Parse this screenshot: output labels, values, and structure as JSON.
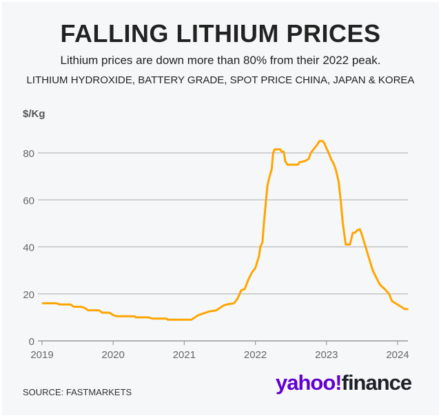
{
  "header": {
    "title": "FALLING LITHIUM PRICES",
    "subtitle": "Lithium prices are down more than 80% from their 2022 peak.",
    "series_description": "LITHIUM HYDROXIDE, BATTERY GRADE, SPOT PRICE CHINA, JAPAN & KOREA"
  },
  "footer": {
    "source": "SOURCE: FASTMARKETS",
    "logo": "yahoo!finance",
    "logo_parts": [
      "yahoo!",
      "finance"
    ]
  },
  "chart_data": {
    "type": "line",
    "title": "FALLING LITHIUM PRICES",
    "ylabel": "$/Kg",
    "xlabel": "",
    "xlim": [
      2019,
      2024.15
    ],
    "ylim": [
      0,
      90
    ],
    "x_ticks": [
      "2019",
      "2020",
      "2021",
      "2022",
      "2023",
      "2024"
    ],
    "y_ticks": [
      "0",
      "20",
      "40",
      "60",
      "80"
    ],
    "grid": "horizontal",
    "line_color": "#ffa500",
    "series": [
      {
        "x": [
          2019.0,
          2019.2,
          2019.25,
          2019.4,
          2019.45,
          2019.55,
          2019.6,
          2019.65,
          2019.8,
          2019.85,
          2019.95,
          2020.0,
          2020.05,
          2020.3,
          2020.32,
          2020.5,
          2020.55,
          2020.75,
          2020.77,
          2021.1,
          2021.15,
          2021.2,
          2021.3,
          2021.35,
          2021.45,
          2021.5,
          2021.55,
          2021.6,
          2021.7,
          2021.75,
          2021.8,
          2021.85,
          2021.9,
          2021.95,
          2022.0,
          2022.02,
          2022.05,
          2022.07,
          2022.1,
          2022.12,
          2022.15,
          2022.17,
          2022.2,
          2022.23,
          2022.25,
          2022.27,
          2022.35,
          2022.37,
          2022.4,
          2022.42,
          2022.45,
          2022.6,
          2022.62,
          2022.7,
          2022.75,
          2022.78,
          2022.83,
          2022.87,
          2022.9,
          2022.95,
          2022.97,
          2023.0,
          2023.03,
          2023.07,
          2023.1,
          2023.13,
          2023.17,
          2023.2,
          2023.23,
          2023.27,
          2023.33,
          2023.37,
          2023.4,
          2023.43,
          2023.47,
          2023.5,
          2023.55,
          2023.6,
          2023.65,
          2023.7,
          2023.75,
          2023.82,
          2023.88,
          2023.92,
          2023.97,
          2024.05,
          2024.1,
          2024.15
        ],
        "y": [
          16,
          16,
          15.5,
          15.5,
          14.5,
          14.5,
          14,
          13,
          13,
          12,
          12,
          11,
          10.5,
          10.5,
          10,
          10,
          9.5,
          9.5,
          9,
          9,
          10,
          11,
          12,
          12.5,
          13,
          14,
          15,
          15.5,
          16,
          18,
          21.5,
          22,
          26,
          29,
          31,
          33,
          36,
          40,
          42,
          50,
          60,
          66,
          70,
          73,
          80,
          81.5,
          81.5,
          80.5,
          80.5,
          76.5,
          75,
          75,
          76,
          76.5,
          77.5,
          80,
          82,
          83.5,
          85,
          85,
          84,
          82,
          80,
          77,
          75.5,
          73,
          68,
          60,
          50,
          41,
          41,
          46,
          46,
          47,
          47.5,
          45,
          40,
          35,
          30,
          27,
          24,
          22,
          20,
          17,
          16,
          14.5,
          13.5,
          13.5
        ]
      }
    ]
  }
}
